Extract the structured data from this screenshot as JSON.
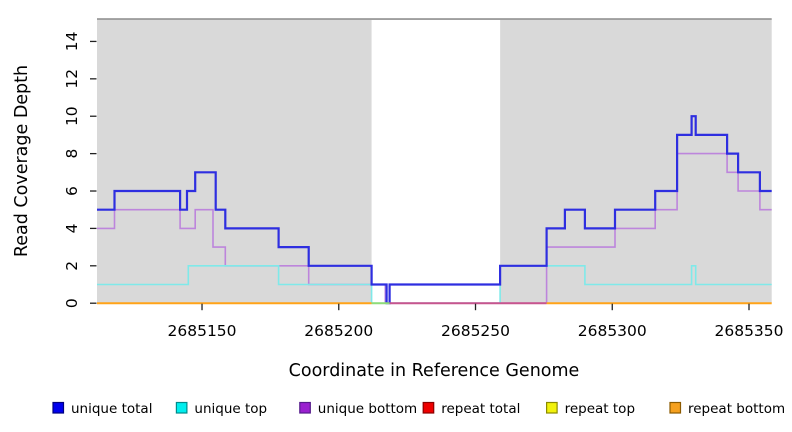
{
  "chart_data": {
    "type": "step",
    "title": "",
    "xlabel": "Coordinate in Reference Genome",
    "ylabel": "Read Coverage Depth",
    "xlim": [
      2685111.6,
      2685358.3
    ],
    "ylim": [
      0,
      15.2
    ],
    "xticks": [
      "2685150",
      "2685200",
      "2685250",
      "2685300",
      "2685350"
    ],
    "xtick_values": [
      2685150,
      2685200,
      2685250,
      2685300,
      2685350
    ],
    "yticks": [
      "0",
      "2",
      "4",
      "6",
      "8",
      "10",
      "12",
      "14"
    ],
    "ytick_values": [
      0,
      2,
      4,
      6,
      8,
      10,
      12,
      14
    ],
    "grid": "off",
    "legend_position": "bottom",
    "plot_bg_color": "#D9D9D9",
    "gap_region": {
      "x1": 2685212,
      "x2": 2685259,
      "color": "#FFFFFF"
    },
    "top_border_color": "#8C8C8C",
    "tick_color": "#222222",
    "series": [
      {
        "name": "unique total",
        "line_color": "#2E2EE0",
        "legend_color": "#0000EE",
        "legend_border": "#000080",
        "points": [
          [
            2685111.6,
            5
          ],
          [
            2685118,
            6
          ],
          [
            2685142,
            5
          ],
          [
            2685144.5,
            6
          ],
          [
            2685147.5,
            7
          ],
          [
            2685155,
            5
          ],
          [
            2685158.5,
            4
          ],
          [
            2685178,
            3
          ],
          [
            2685189,
            2
          ],
          [
            2685212,
            1
          ],
          [
            2685217.5,
            0
          ],
          [
            2685218.6,
            1
          ],
          [
            2685259,
            2
          ],
          [
            2685276,
            4
          ],
          [
            2685282.7,
            5
          ],
          [
            2685290,
            4
          ],
          [
            2685301,
            5
          ],
          [
            2685315.7,
            6
          ],
          [
            2685323.7,
            9
          ],
          [
            2685329,
            10
          ],
          [
            2685330.5,
            9
          ],
          [
            2685342,
            8
          ],
          [
            2685346,
            7
          ],
          [
            2685354,
            6
          ],
          [
            2685358.3,
            6
          ]
        ]
      },
      {
        "name": "unique top",
        "line_color": "#7FE9E9",
        "legend_color": "#00EEEE",
        "legend_border": "#008B8B",
        "points": [
          [
            2685111.6,
            1
          ],
          [
            2685145,
            2
          ],
          [
            2685178,
            1
          ],
          [
            2685212,
            0
          ],
          [
            2685259,
            2
          ],
          [
            2685290,
            1
          ],
          [
            2685329,
            2
          ],
          [
            2685330.5,
            1
          ],
          [
            2685358.3,
            1
          ]
        ]
      },
      {
        "name": "unique bottom",
        "line_color": "#BD85DC",
        "legend_color": "#9A20CF",
        "legend_border": "#551A8B",
        "points": [
          [
            2685111.6,
            4
          ],
          [
            2685118,
            5
          ],
          [
            2685142,
            4
          ],
          [
            2685147.5,
            5
          ],
          [
            2685154,
            3
          ],
          [
            2685158.5,
            2
          ],
          [
            2685189,
            1
          ],
          [
            2685217,
            0
          ],
          [
            2685276,
            3
          ],
          [
            2685301,
            4
          ],
          [
            2685315.7,
            5
          ],
          [
            2685323.7,
            8
          ],
          [
            2685342,
            7
          ],
          [
            2685346,
            6
          ],
          [
            2685354,
            5
          ],
          [
            2685358.3,
            5
          ]
        ]
      },
      {
        "name": "repeat total",
        "line_color": "#C7558E",
        "legend_color": "#EE0000",
        "legend_border": "#8B0000",
        "points": [
          [
            2685111.6,
            0
          ],
          [
            2685358.3,
            0
          ]
        ]
      },
      {
        "name": "repeat top",
        "line_color": "#EEEE00",
        "legend_color": "#F2F20C",
        "legend_border": "#8B8B00",
        "points": [
          [
            2685111.6,
            0
          ],
          [
            2685358.3,
            0
          ]
        ]
      },
      {
        "name": "repeat bottom",
        "line_color": "#FFA318",
        "legend_color": "#F5A01E",
        "legend_border": "#8B5A00",
        "points": [
          [
            2685111.6,
            0
          ],
          [
            2685358.3,
            0
          ]
        ]
      }
    ],
    "zero_line_segments": [
      {
        "from": 2685111.6,
        "to": 2685212,
        "color": "#FFA318"
      },
      {
        "from": 2685212,
        "to": 2685218.6,
        "color": "#8FDC78"
      },
      {
        "from": 2685218.6,
        "to": 2685276,
        "color": "#C7558E"
      },
      {
        "from": 2685276,
        "to": 2685358.3,
        "color": "#FFA318"
      }
    ]
  }
}
